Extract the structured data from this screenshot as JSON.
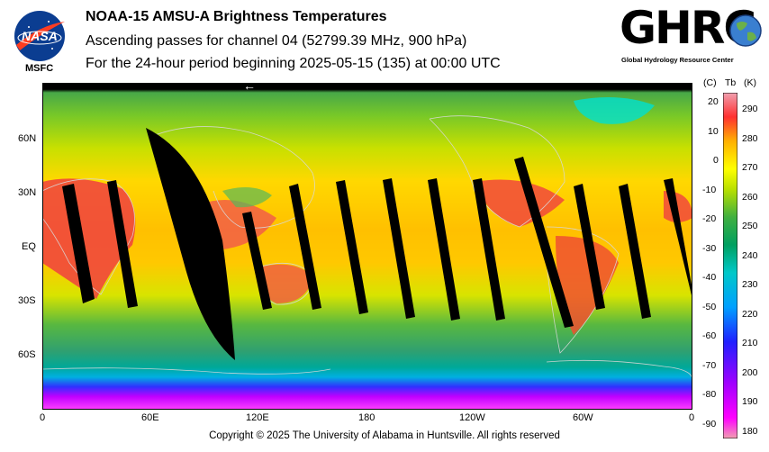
{
  "header": {
    "title": "NOAA-15 AMSU-A Brightness Temperatures",
    "subtitle": "Ascending passes for channel 04 (52799.39 MHz, 900 hPa)",
    "period": "For the 24-hour period beginning 2025-05-15 (135) at 00:00 UTC"
  },
  "logos": {
    "nasa_text": "NASA",
    "msfc": "MSFC",
    "ghrc": "GHRC",
    "ghrc_sub": "Global Hydrology Resource Center"
  },
  "map": {
    "lat_labels": [
      "60N",
      "30N",
      "EQ",
      "30S",
      "60S"
    ],
    "lon_labels": [
      "0",
      "60E",
      "120E",
      "180",
      "120W",
      "60W",
      "0"
    ],
    "arrow": "←"
  },
  "colorbar": {
    "header_c": "(C)",
    "header_tb": "Tb",
    "header_k": "(K)",
    "celsius_ticks": [
      "20",
      "10",
      "0",
      "-10",
      "-20",
      "-30",
      "-40",
      "-50",
      "-60",
      "-70",
      "-80",
      "-90"
    ],
    "kelvin_ticks": [
      "290",
      "280",
      "270",
      "260",
      "250",
      "240",
      "230",
      "220",
      "210",
      "200",
      "190",
      "180"
    ],
    "colors": [
      "#ff00ff",
      "#a000ff",
      "#2020ff",
      "#00a0ff",
      "#00c8c8",
      "#00a060",
      "#40b040",
      "#b8e000",
      "#ffff00",
      "#ffb000",
      "#ff3030",
      "#f0a0b0"
    ]
  },
  "footer": {
    "copyright": "Copyright © 2025 The University of Alabama in Huntsville.  All rights reserved"
  }
}
